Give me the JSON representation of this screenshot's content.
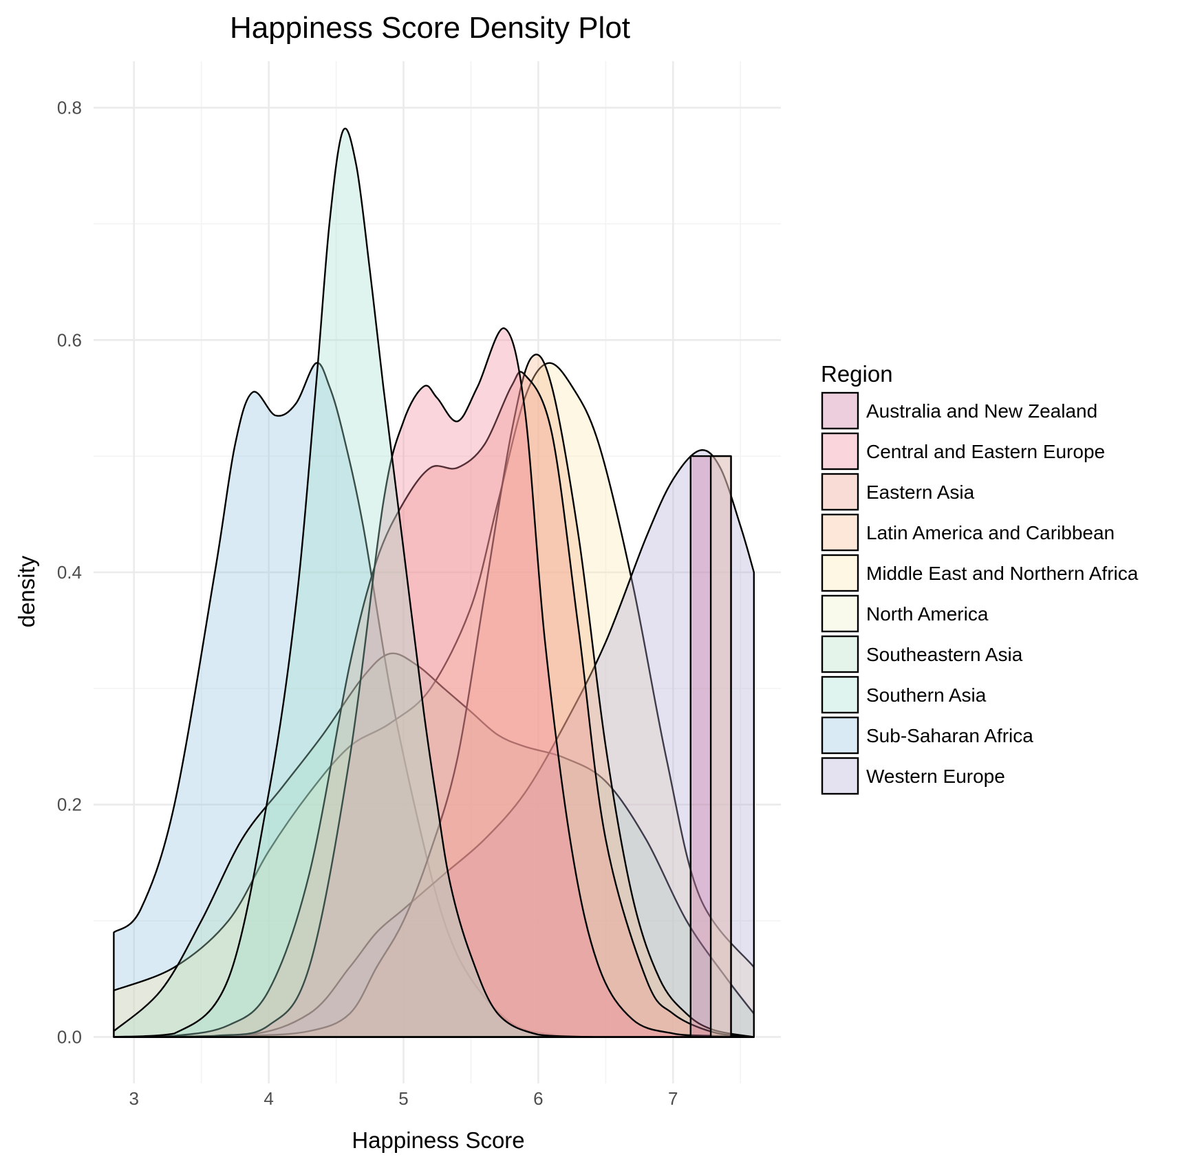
{
  "chart_data": {
    "type": "area",
    "title": "Happiness Score Density Plot",
    "xlabel": "Happiness Score",
    "ylabel": "density",
    "xlim": [
      2.7,
      7.8
    ],
    "ylim": [
      -0.04,
      0.84
    ],
    "x_ticks": [
      "3",
      "4",
      "5",
      "6",
      "7"
    ],
    "y_ticks": [
      "0.0",
      "0.2",
      "0.4",
      "0.6",
      "0.8"
    ],
    "grid": true,
    "legend_title": "Region",
    "legend_position": "right",
    "fill_opacity": 0.35,
    "series": [
      {
        "name": "Australia and New Zealand",
        "color": "#c9729f",
        "x": [
          7.13,
          7.13,
          7.43,
          7.43
        ],
        "y": [
          0,
          0.5,
          0.5,
          0
        ]
      },
      {
        "name": "Central and Eastern Europe",
        "color": "#f0869b",
        "x": [
          2.85,
          3.6,
          4.0,
          4.3,
          4.6,
          4.85,
          5.0,
          5.15,
          5.25,
          5.4,
          5.55,
          5.75,
          5.9,
          6.05,
          6.25,
          6.45,
          6.7,
          7.0,
          7.3,
          7.6
        ],
        "y": [
          0,
          0.001,
          0.01,
          0.06,
          0.24,
          0.46,
          0.53,
          0.56,
          0.55,
          0.53,
          0.56,
          0.61,
          0.54,
          0.34,
          0.16,
          0.06,
          0.015,
          0.003,
          0.001,
          0
        ]
      },
      {
        "name": "Eastern Asia",
        "color": "#f29a8c",
        "x": [
          2.85,
          3.3,
          3.7,
          4.0,
          4.3,
          4.6,
          4.8,
          5.0,
          5.2,
          5.4,
          5.6,
          5.8,
          5.9,
          6.1,
          6.3,
          6.5,
          6.8,
          7.0,
          7.3,
          7.6
        ],
        "y": [
          0,
          0.001,
          0.01,
          0.04,
          0.14,
          0.32,
          0.41,
          0.46,
          0.49,
          0.49,
          0.51,
          0.56,
          0.57,
          0.52,
          0.35,
          0.17,
          0.05,
          0.02,
          0.004,
          0
        ]
      },
      {
        "name": "Latin America and Caribbean",
        "color": "#f7bb92",
        "x": [
          2.85,
          3.8,
          4.3,
          4.6,
          4.8,
          5.0,
          5.2,
          5.4,
          5.6,
          5.8,
          5.95,
          6.1,
          6.3,
          6.5,
          6.7,
          6.9,
          7.1,
          7.3,
          7.6
        ],
        "y": [
          0,
          0.001,
          0.005,
          0.02,
          0.06,
          0.1,
          0.16,
          0.24,
          0.38,
          0.52,
          0.585,
          0.56,
          0.43,
          0.25,
          0.12,
          0.05,
          0.02,
          0.006,
          0
        ]
      },
      {
        "name": "Middle East and Northern Africa",
        "color": "#fbe9b3",
        "x": [
          2.85,
          3.3,
          3.7,
          4.0,
          4.3,
          4.6,
          4.9,
          5.2,
          5.5,
          5.7,
          5.9,
          6.07,
          6.25,
          6.45,
          6.7,
          6.95,
          7.2,
          7.6
        ],
        "y": [
          0.04,
          0.06,
          0.1,
          0.16,
          0.21,
          0.25,
          0.27,
          0.3,
          0.37,
          0.46,
          0.55,
          0.58,
          0.56,
          0.51,
          0.39,
          0.24,
          0.12,
          0.06
        ]
      },
      {
        "name": "North America",
        "color": "#eef2c8",
        "x": [
          7.28,
          7.28,
          7.43,
          7.43
        ],
        "y": [
          0,
          0.5,
          0.5,
          0
        ]
      },
      {
        "name": "Southeastern Asia",
        "color": "#b2dfc2",
        "x": [
          2.85,
          3.2,
          3.5,
          3.8,
          4.1,
          4.4,
          4.7,
          4.9,
          5.1,
          5.3,
          5.5,
          5.7,
          5.9,
          6.2,
          6.5,
          6.8,
          7.1,
          7.4,
          7.6
        ],
        "y": [
          0.005,
          0.04,
          0.1,
          0.17,
          0.215,
          0.26,
          0.31,
          0.33,
          0.32,
          0.3,
          0.28,
          0.26,
          0.25,
          0.24,
          0.22,
          0.17,
          0.1,
          0.05,
          0.02
        ]
      },
      {
        "name": "Southern Asia",
        "color": "#a4dfcf",
        "x": [
          2.85,
          3.3,
          3.7,
          4.0,
          4.2,
          4.35,
          4.45,
          4.55,
          4.65,
          4.75,
          4.85,
          5.0,
          5.15,
          5.25,
          5.35,
          5.5,
          5.7,
          6.0,
          6.4
        ],
        "y": [
          0,
          0.003,
          0.05,
          0.21,
          0.37,
          0.56,
          0.7,
          0.78,
          0.75,
          0.66,
          0.56,
          0.42,
          0.28,
          0.2,
          0.13,
          0.07,
          0.02,
          0.002,
          0
        ]
      },
      {
        "name": "Sub-Saharan Africa",
        "color": "#91c2df",
        "x": [
          2.85,
          3.05,
          3.3,
          3.6,
          3.75,
          3.88,
          4.05,
          4.2,
          4.35,
          4.45,
          4.55,
          4.7,
          4.9,
          5.1,
          5.3,
          5.5,
          5.8,
          6.1,
          6.4
        ],
        "y": [
          0.09,
          0.11,
          0.2,
          0.4,
          0.51,
          0.555,
          0.535,
          0.545,
          0.58,
          0.56,
          0.52,
          0.44,
          0.3,
          0.19,
          0.1,
          0.05,
          0.012,
          0.002,
          0
        ]
      },
      {
        "name": "Western Europe",
        "color": "#b3a8d6",
        "x": [
          2.85,
          3.8,
          4.3,
          4.6,
          4.8,
          5.0,
          5.3,
          5.6,
          5.9,
          6.2,
          6.5,
          6.8,
          7.0,
          7.2,
          7.35,
          7.5,
          7.6
        ],
        "y": [
          0,
          0.001,
          0.02,
          0.06,
          0.09,
          0.11,
          0.14,
          0.17,
          0.21,
          0.27,
          0.34,
          0.43,
          0.48,
          0.505,
          0.49,
          0.44,
          0.4
        ]
      }
    ]
  }
}
